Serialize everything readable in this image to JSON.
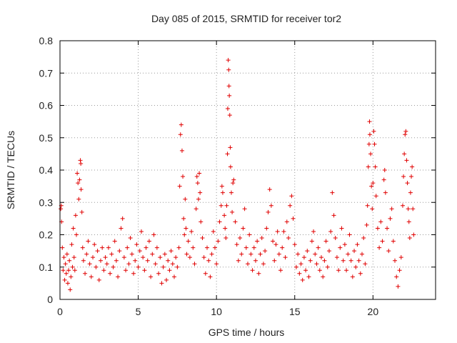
{
  "chart_data": {
    "type": "scatter",
    "title": "Day 085 of 2015, SRMTID for receiver tor2",
    "xlabel": "GPS time / hours",
    "ylabel": "SRMTID / TECUs",
    "xlim": [
      0,
      24
    ],
    "ylim": [
      0,
      0.8
    ],
    "xticks": [
      0,
      5,
      10,
      15,
      20
    ],
    "yticks": [
      0,
      0.1,
      0.2,
      0.3,
      0.4,
      0.5,
      0.6,
      0.7,
      0.8
    ],
    "xtick_labels": [
      "0",
      "5",
      "10",
      "15",
      "20"
    ],
    "ytick_labels": [
      "0",
      "0.1",
      "0.2",
      "0.3",
      "0.4",
      "0.5",
      "0.6",
      "0.7",
      "0.8"
    ],
    "grid": true,
    "marker": "+",
    "color": "#e00000",
    "series": [
      {
        "name": "SRMTID",
        "points": [
          [
            0.05,
            0.28
          ],
          [
            0.08,
            0.29
          ],
          [
            0.1,
            0.24
          ],
          [
            0.15,
            0.16
          ],
          [
            0.2,
            0.09
          ],
          [
            0.25,
            0.13
          ],
          [
            0.3,
            0.06
          ],
          [
            0.35,
            0.11
          ],
          [
            0.4,
            0.08
          ],
          [
            0.45,
            0.14
          ],
          [
            0.5,
            0.05
          ],
          [
            0.55,
            0.09
          ],
          [
            0.6,
            0.12
          ],
          [
            0.65,
            0.03
          ],
          [
            0.7,
            0.07
          ],
          [
            0.75,
            0.17
          ],
          [
            0.8,
            0.1
          ],
          [
            0.85,
            0.22
          ],
          [
            0.9,
            0.13
          ],
          [
            0.95,
            0.09
          ],
          [
            1.0,
            0.26
          ],
          [
            1.05,
            0.2
          ],
          [
            1.1,
            0.39
          ],
          [
            1.15,
            0.36
          ],
          [
            1.2,
            0.31
          ],
          [
            1.25,
            0.37
          ],
          [
            1.3,
            0.43
          ],
          [
            1.33,
            0.42
          ],
          [
            1.35,
            0.34
          ],
          [
            1.4,
            0.27
          ],
          [
            1.45,
            0.16
          ],
          [
            1.5,
            0.12
          ],
          [
            1.6,
            0.08
          ],
          [
            1.7,
            0.14
          ],
          [
            1.8,
            0.18
          ],
          [
            1.9,
            0.11
          ],
          [
            2.0,
            0.07
          ],
          [
            2.1,
            0.13
          ],
          [
            2.2,
            0.17
          ],
          [
            2.3,
            0.1
          ],
          [
            2.4,
            0.15
          ],
          [
            2.5,
            0.06
          ],
          [
            2.6,
            0.12
          ],
          [
            2.7,
            0.16
          ],
          [
            2.8,
            0.09
          ],
          [
            2.9,
            0.13
          ],
          [
            3.0,
            0.11
          ],
          [
            3.1,
            0.16
          ],
          [
            3.2,
            0.08
          ],
          [
            3.3,
            0.14
          ],
          [
            3.4,
            0.1
          ],
          [
            3.5,
            0.18
          ],
          [
            3.6,
            0.12
          ],
          [
            3.7,
            0.07
          ],
          [
            3.8,
            0.15
          ],
          [
            3.9,
            0.22
          ],
          [
            4.0,
            0.25
          ],
          [
            4.1,
            0.13
          ],
          [
            4.2,
            0.09
          ],
          [
            4.3,
            0.16
          ],
          [
            4.4,
            0.11
          ],
          [
            4.5,
            0.19
          ],
          [
            4.6,
            0.14
          ],
          [
            4.7,
            0.08
          ],
          [
            4.8,
            0.12
          ],
          [
            4.9,
            0.17
          ],
          [
            5.0,
            0.1
          ],
          [
            5.1,
            0.15
          ],
          [
            5.2,
            0.21
          ],
          [
            5.3,
            0.13
          ],
          [
            5.4,
            0.09
          ],
          [
            5.5,
            0.16
          ],
          [
            5.6,
            0.12
          ],
          [
            5.7,
            0.18
          ],
          [
            5.8,
            0.07
          ],
          [
            5.9,
            0.14
          ],
          [
            6.0,
            0.2
          ],
          [
            6.1,
            0.11
          ],
          [
            6.2,
            0.16
          ],
          [
            6.3,
            0.08
          ],
          [
            6.4,
            0.13
          ],
          [
            6.5,
            0.05
          ],
          [
            6.6,
            0.1
          ],
          [
            6.7,
            0.14
          ],
          [
            6.8,
            0.06
          ],
          [
            6.9,
            0.12
          ],
          [
            7.0,
            0.09
          ],
          [
            7.1,
            0.15
          ],
          [
            7.2,
            0.11
          ],
          [
            7.3,
            0.07
          ],
          [
            7.4,
            0.13
          ],
          [
            7.5,
            0.1
          ],
          [
            7.6,
            0.16
          ],
          [
            7.65,
            0.35
          ],
          [
            7.7,
            0.51
          ],
          [
            7.75,
            0.54
          ],
          [
            7.8,
            0.46
          ],
          [
            7.85,
            0.38
          ],
          [
            7.9,
            0.25
          ],
          [
            7.95,
            0.2
          ],
          [
            8.0,
            0.31
          ],
          [
            8.05,
            0.22
          ],
          [
            8.1,
            0.14
          ],
          [
            8.2,
            0.18
          ],
          [
            8.3,
            0.13
          ],
          [
            8.4,
            0.21
          ],
          [
            8.5,
            0.16
          ],
          [
            8.6,
            0.11
          ],
          [
            8.7,
            0.28
          ],
          [
            8.75,
            0.38
          ],
          [
            8.8,
            0.36
          ],
          [
            8.85,
            0.31
          ],
          [
            8.9,
            0.39
          ],
          [
            8.95,
            0.33
          ],
          [
            9.0,
            0.24
          ],
          [
            9.1,
            0.19
          ],
          [
            9.2,
            0.13
          ],
          [
            9.3,
            0.08
          ],
          [
            9.4,
            0.16
          ],
          [
            9.5,
            0.12
          ],
          [
            9.6,
            0.07
          ],
          [
            9.7,
            0.14
          ],
          [
            9.8,
            0.21
          ],
          [
            9.9,
            0.16
          ],
          [
            10.0,
            0.11
          ],
          [
            10.1,
            0.18
          ],
          [
            10.2,
            0.24
          ],
          [
            10.3,
            0.29
          ],
          [
            10.35,
            0.35
          ],
          [
            10.4,
            0.33
          ],
          [
            10.5,
            0.26
          ],
          [
            10.55,
            0.22
          ],
          [
            10.6,
            0.19
          ],
          [
            10.65,
            0.29
          ],
          [
            10.7,
            0.45
          ],
          [
            10.72,
            0.59
          ],
          [
            10.75,
            0.74
          ],
          [
            10.78,
            0.71
          ],
          [
            10.8,
            0.66
          ],
          [
            10.82,
            0.63
          ],
          [
            10.85,
            0.57
          ],
          [
            10.88,
            0.47
          ],
          [
            10.9,
            0.41
          ],
          [
            10.95,
            0.33
          ],
          [
            11.0,
            0.27
          ],
          [
            11.05,
            0.36
          ],
          [
            11.1,
            0.37
          ],
          [
            11.2,
            0.24
          ],
          [
            11.3,
            0.17
          ],
          [
            11.4,
            0.12
          ],
          [
            11.5,
            0.19
          ],
          [
            11.6,
            0.14
          ],
          [
            11.7,
            0.22
          ],
          [
            11.8,
            0.28
          ],
          [
            11.9,
            0.16
          ],
          [
            12.0,
            0.11
          ],
          [
            12.1,
            0.2
          ],
          [
            12.2,
            0.14
          ],
          [
            12.3,
            0.09
          ],
          [
            12.4,
            0.16
          ],
          [
            12.5,
            0.12
          ],
          [
            12.6,
            0.18
          ],
          [
            12.7,
            0.08
          ],
          [
            12.8,
            0.14
          ],
          [
            12.9,
            0.19
          ],
          [
            13.0,
            0.11
          ],
          [
            13.1,
            0.15
          ],
          [
            13.2,
            0.22
          ],
          [
            13.3,
            0.27
          ],
          [
            13.4,
            0.34
          ],
          [
            13.5,
            0.29
          ],
          [
            13.6,
            0.18
          ],
          [
            13.7,
            0.12
          ],
          [
            13.8,
            0.17
          ],
          [
            13.9,
            0.21
          ],
          [
            14.0,
            0.14
          ],
          [
            14.1,
            0.09
          ],
          [
            14.2,
            0.16
          ],
          [
            14.3,
            0.21
          ],
          [
            14.4,
            0.13
          ],
          [
            14.5,
            0.24
          ],
          [
            14.6,
            0.19
          ],
          [
            14.7,
            0.29
          ],
          [
            14.8,
            0.32
          ],
          [
            14.9,
            0.25
          ],
          [
            15.0,
            0.17
          ],
          [
            15.1,
            0.1
          ],
          [
            15.2,
            0.14
          ],
          [
            15.3,
            0.08
          ],
          [
            15.4,
            0.11
          ],
          [
            15.5,
            0.06
          ],
          [
            15.6,
            0.13
          ],
          [
            15.7,
            0.09
          ],
          [
            15.8,
            0.15
          ],
          [
            15.9,
            0.07
          ],
          [
            16.0,
            0.12
          ],
          [
            16.1,
            0.18
          ],
          [
            16.2,
            0.21
          ],
          [
            16.3,
            0.14
          ],
          [
            16.4,
            0.11
          ],
          [
            16.5,
            0.16
          ],
          [
            16.6,
            0.09
          ],
          [
            16.7,
            0.13
          ],
          [
            16.8,
            0.07
          ],
          [
            16.9,
            0.12
          ],
          [
            17.0,
            0.18
          ],
          [
            17.1,
            0.1
          ],
          [
            17.2,
            0.15
          ],
          [
            17.3,
            0.21
          ],
          [
            17.4,
            0.33
          ],
          [
            17.5,
            0.26
          ],
          [
            17.6,
            0.19
          ],
          [
            17.7,
            0.13
          ],
          [
            17.8,
            0.09
          ],
          [
            17.9,
            0.16
          ],
          [
            18.0,
            0.22
          ],
          [
            18.1,
            0.12
          ],
          [
            18.2,
            0.17
          ],
          [
            18.3,
            0.09
          ],
          [
            18.4,
            0.14
          ],
          [
            18.5,
            0.2
          ],
          [
            18.6,
            0.12
          ],
          [
            18.7,
            0.07
          ],
          [
            18.8,
            0.15
          ],
          [
            18.9,
            0.1
          ],
          [
            19.0,
            0.17
          ],
          [
            19.1,
            0.12
          ],
          [
            19.2,
            0.08
          ],
          [
            19.3,
            0.14
          ],
          [
            19.4,
            0.19
          ],
          [
            19.5,
            0.11
          ],
          [
            19.6,
            0.23
          ],
          [
            19.65,
            0.29
          ],
          [
            19.7,
            0.41
          ],
          [
            19.75,
            0.48
          ],
          [
            19.78,
            0.55
          ],
          [
            19.8,
            0.51
          ],
          [
            19.85,
            0.45
          ],
          [
            19.9,
            0.35
          ],
          [
            19.95,
            0.28
          ],
          [
            20.0,
            0.36
          ],
          [
            20.05,
            0.52
          ],
          [
            20.1,
            0.48
          ],
          [
            20.15,
            0.41
          ],
          [
            20.2,
            0.32
          ],
          [
            20.3,
            0.22
          ],
          [
            20.4,
            0.16
          ],
          [
            20.5,
            0.24
          ],
          [
            20.6,
            0.18
          ],
          [
            20.7,
            0.37
          ],
          [
            20.75,
            0.4
          ],
          [
            20.8,
            0.33
          ],
          [
            20.9,
            0.22
          ],
          [
            21.0,
            0.15
          ],
          [
            21.1,
            0.25
          ],
          [
            21.2,
            0.28
          ],
          [
            21.3,
            0.18
          ],
          [
            21.4,
            0.12
          ],
          [
            21.5,
            0.07
          ],
          [
            21.6,
            0.04
          ],
          [
            21.7,
            0.09
          ],
          [
            21.8,
            0.13
          ],
          [
            21.9,
            0.29
          ],
          [
            21.95,
            0.38
          ],
          [
            22.0,
            0.45
          ],
          [
            22.05,
            0.51
          ],
          [
            22.1,
            0.52
          ],
          [
            22.15,
            0.43
          ],
          [
            22.2,
            0.36
          ],
          [
            22.25,
            0.28
          ],
          [
            22.3,
            0.24
          ],
          [
            22.35,
            0.19
          ],
          [
            22.4,
            0.33
          ],
          [
            22.45,
            0.38
          ],
          [
            22.5,
            0.41
          ],
          [
            22.55,
            0.28
          ],
          [
            22.6,
            0.2
          ]
        ]
      }
    ]
  }
}
